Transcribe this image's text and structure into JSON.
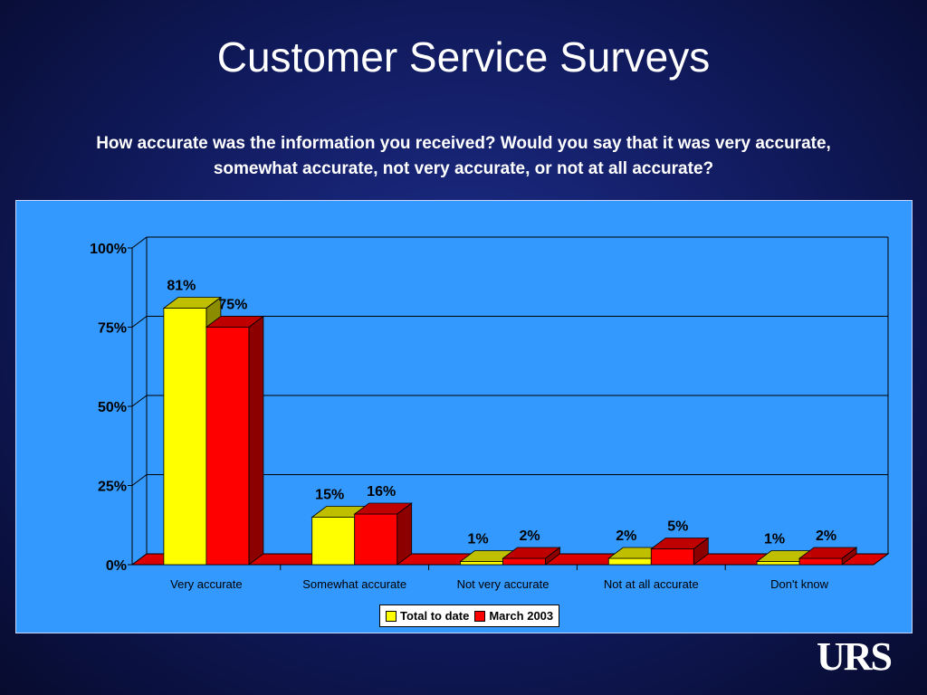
{
  "slide": {
    "title": "Customer Service Surveys",
    "question": "How accurate was the information you received? Would you say that it was very accurate, somewhat accurate, not very accurate, or not at all accurate?",
    "logo_text": "URS"
  },
  "colors": {
    "background": "#101a5c",
    "panel": "#3399ff",
    "total_to_date": "#ffff00",
    "march_2003": "#ff0000",
    "floor": "#dd0000"
  },
  "chart_data": {
    "type": "bar",
    "style": "3d-clustered",
    "categories": [
      "Very accurate",
      "Somewhat accurate",
      "Not very accurate",
      "Not at all accurate",
      "Don't know"
    ],
    "series": [
      {
        "name": "Total to date",
        "values": [
          81,
          15,
          1,
          2,
          1
        ],
        "labels": [
          "81%",
          "15%",
          "1%",
          "2%",
          "1%"
        ],
        "color": "#ffff00"
      },
      {
        "name": "March 2003",
        "values": [
          75,
          16,
          2,
          5,
          2
        ],
        "labels": [
          "75%",
          "16%",
          "2%",
          "5%",
          "2%"
        ],
        "color": "#ff0000"
      }
    ],
    "y_ticks": [
      "0%",
      "25%",
      "50%",
      "75%",
      "100%"
    ],
    "ylim": [
      0,
      100
    ],
    "grid": true,
    "legend_position": "bottom"
  }
}
